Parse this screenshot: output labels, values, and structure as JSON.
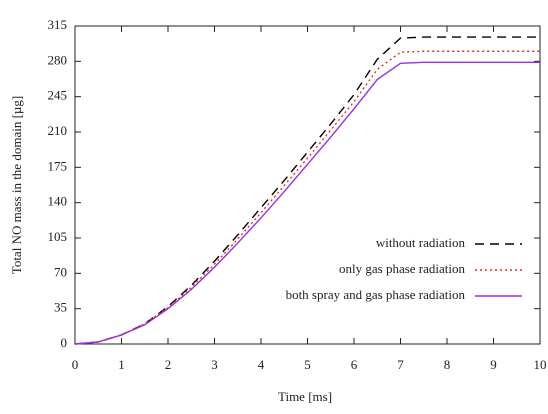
{
  "chart_data": {
    "type": "line",
    "xlabel": "Time [ms]",
    "ylabel": "Total NO mass in the domain [µg]",
    "x": [
      0,
      0.5,
      1,
      1.5,
      2,
      2.5,
      3,
      3.5,
      4,
      4.5,
      5,
      5.5,
      6,
      6.5,
      7,
      7.5,
      8,
      8.5,
      9,
      9.5,
      10
    ],
    "series": [
      {
        "name": "without radiation",
        "color": "#000000",
        "dash": "9,6",
        "values": [
          0,
          2,
          9,
          20,
          37,
          58,
          82,
          108,
          135,
          162,
          190,
          218,
          247,
          282,
          303,
          304,
          304,
          304,
          304,
          304,
          304
        ]
      },
      {
        "name": "only gas phase radiation",
        "color": "#e0301e",
        "dash": "2,3",
        "values": [
          0,
          2,
          9,
          20,
          36,
          56,
          79,
          104,
          130,
          157,
          184,
          212,
          240,
          272,
          289,
          290,
          290,
          290,
          290,
          290,
          290
        ]
      },
      {
        "name": "both spray and gas phase radiation",
        "color": "#9b30e0",
        "dash": "none",
        "values": [
          0,
          2,
          9,
          19,
          35,
          54,
          76,
          100,
          125,
          151,
          178,
          205,
          233,
          262,
          278,
          279,
          279,
          279,
          279,
          279,
          279
        ]
      }
    ],
    "xlim": [
      0,
      10
    ],
    "xticks": [
      0,
      1,
      2,
      3,
      4,
      5,
      6,
      7,
      8,
      9,
      10
    ],
    "ylim": [
      0,
      315
    ],
    "yticks": [
      0,
      35,
      70,
      105,
      140,
      175,
      210,
      245,
      280,
      315
    ],
    "grid": false,
    "legend": "lower right"
  }
}
